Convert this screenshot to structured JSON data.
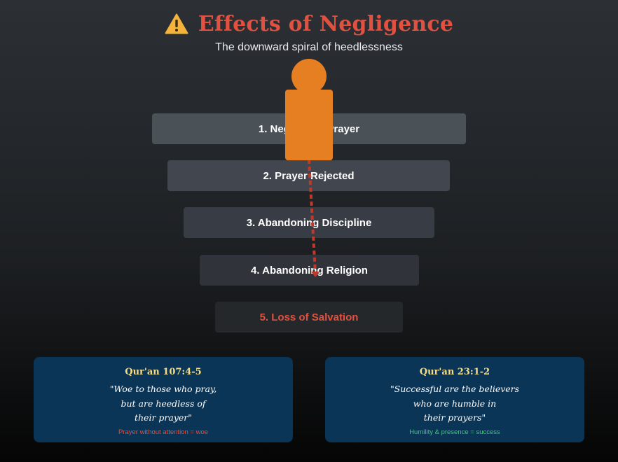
{
  "header": {
    "icon": "warning-triangle-icon",
    "title": "Effects of Negligence",
    "subtitle": "The downward spiral of heedlessness"
  },
  "steps": [
    {
      "label": "1. Neglecting Prayer"
    },
    {
      "label": "2. Prayer Rejected"
    },
    {
      "label": "3. Abandoning Discipline"
    },
    {
      "label": "4. Abandoning Religion"
    },
    {
      "label": "5. Loss of Salvation"
    }
  ],
  "figure": {
    "icon": "person-figure-icon",
    "color": "#e67e22",
    "trail_color": "#c0392b"
  },
  "cards": [
    {
      "title": "Qur'an 107:4-5",
      "quote_lines": [
        "\"Woe to those who pray,",
        "but are heedless of",
        "their prayer\""
      ],
      "note": "Prayer without attention = woe",
      "note_color": "#e2503f"
    },
    {
      "title": "Qur'an 23:1-2",
      "quote_lines": [
        "\"Successful are the believers",
        "who are humble in",
        "their prayers\""
      ],
      "note": "Humility & presence = success",
      "note_color": "#3ec97a"
    }
  ],
  "colors": {
    "accent": "#e2503f",
    "card_bg": "#0b3556",
    "card_title": "#f5dc8a"
  }
}
